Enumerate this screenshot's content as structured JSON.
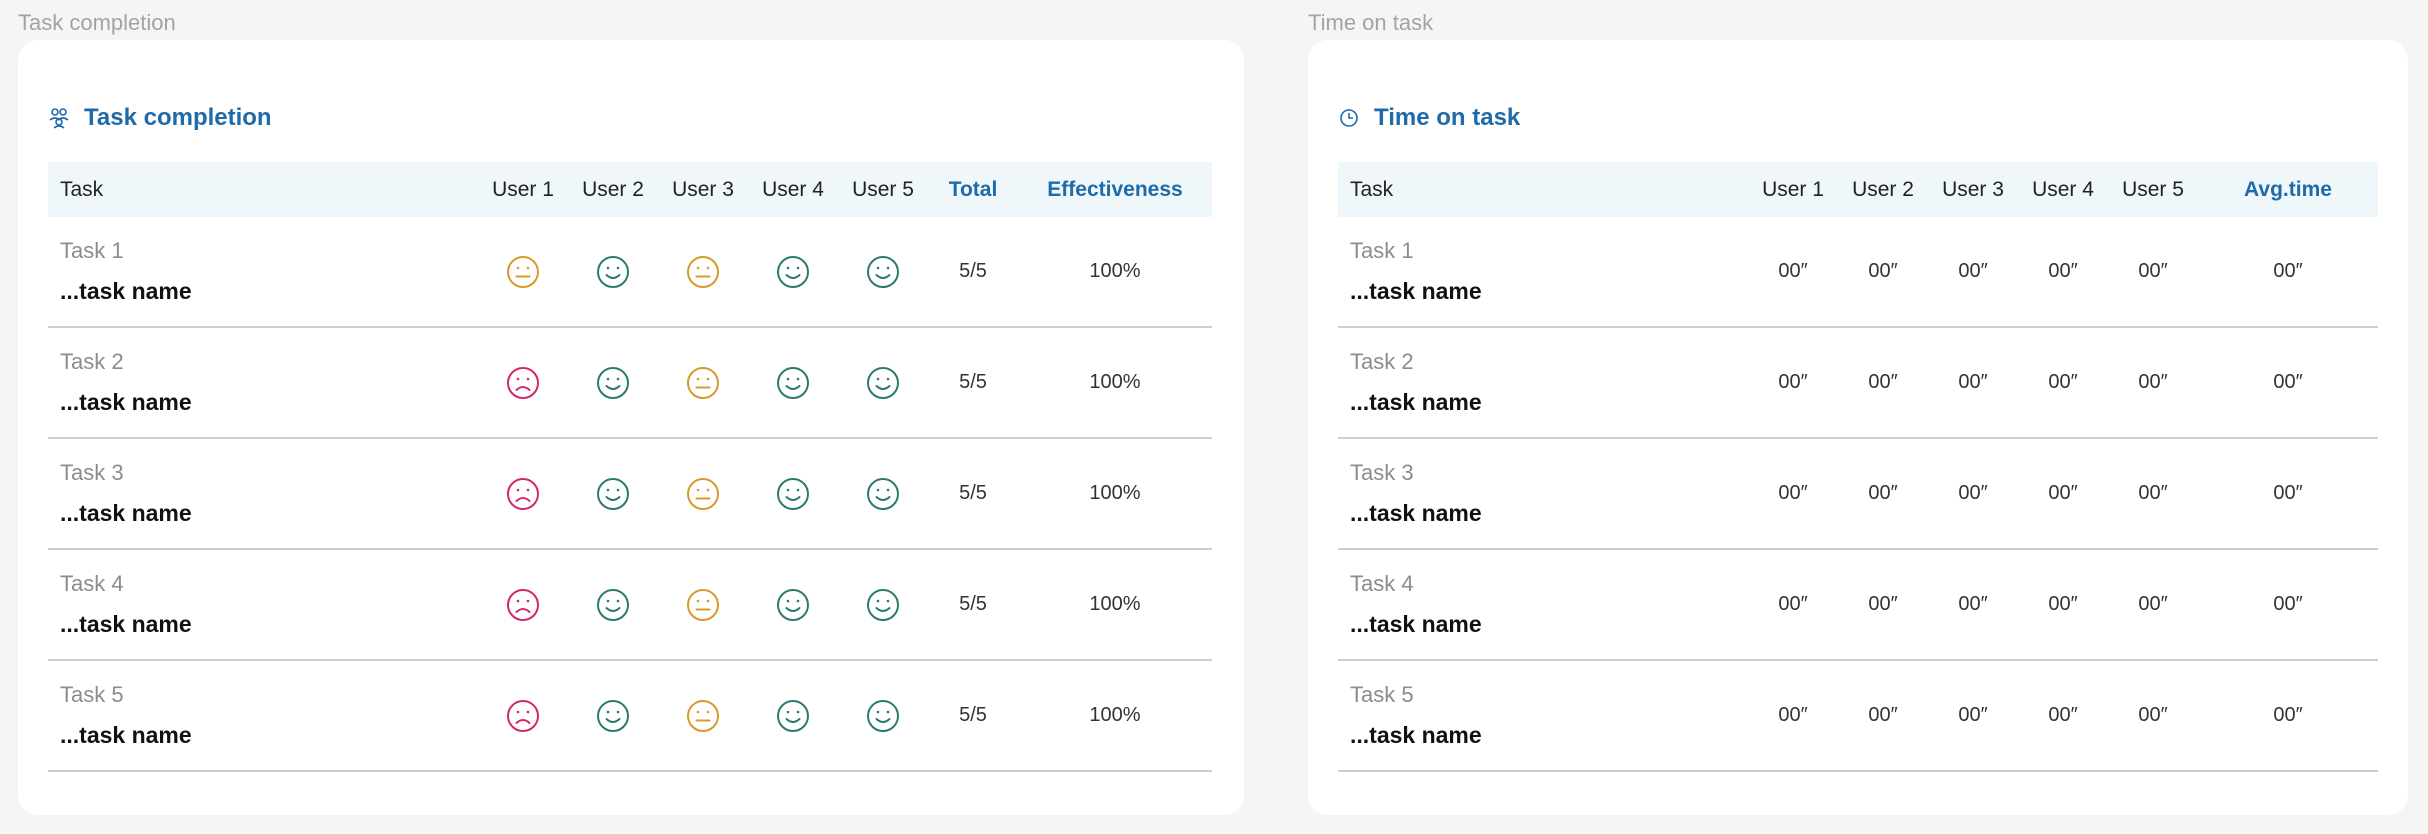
{
  "colors": {
    "happy": "#2a7a6f",
    "neutral": "#d79a2b",
    "sad": "#d4266b",
    "accent": "#1f6aa8"
  },
  "completion": {
    "frame_label": "Task completion",
    "title": "Task completion",
    "icon": "users-icon",
    "headers": {
      "task": "Task",
      "users": [
        "User 1",
        "User 2",
        "User 3",
        "User 4",
        "User 5"
      ],
      "total": "Total",
      "effectiveness": "Effectiveness"
    },
    "rows": [
      {
        "task": "Task 1",
        "name": "...task name",
        "faces": [
          "neutral",
          "happy",
          "neutral",
          "happy",
          "happy"
        ],
        "total": "5/5",
        "effectiveness": "100%"
      },
      {
        "task": "Task 2",
        "name": "...task name",
        "faces": [
          "sad",
          "happy",
          "neutral",
          "happy",
          "happy"
        ],
        "total": "5/5",
        "effectiveness": "100%"
      },
      {
        "task": "Task 3",
        "name": "...task name",
        "faces": [
          "sad",
          "happy",
          "neutral",
          "happy",
          "happy"
        ],
        "total": "5/5",
        "effectiveness": "100%"
      },
      {
        "task": "Task 4",
        "name": "...task name",
        "faces": [
          "sad",
          "happy",
          "neutral",
          "happy",
          "happy"
        ],
        "total": "5/5",
        "effectiveness": "100%"
      },
      {
        "task": "Task 5",
        "name": "...task name",
        "faces": [
          "sad",
          "happy",
          "neutral",
          "happy",
          "happy"
        ],
        "total": "5/5",
        "effectiveness": "100%"
      }
    ]
  },
  "time": {
    "frame_label": "Time on task",
    "title": "Time on task",
    "icon": "clock-icon",
    "headers": {
      "task": "Task",
      "users": [
        "User 1",
        "User 2",
        "User 3",
        "User 4",
        "User 5"
      ],
      "avg": "Avg.time"
    },
    "rows": [
      {
        "task": "Task 1",
        "name": "...task name",
        "times": [
          "00″",
          "00″",
          "00″",
          "00″",
          "00″"
        ],
        "avg": "00″"
      },
      {
        "task": "Task 2",
        "name": "...task name",
        "times": [
          "00″",
          "00″",
          "00″",
          "00″",
          "00″"
        ],
        "avg": "00″"
      },
      {
        "task": "Task 3",
        "name": "...task name",
        "times": [
          "00″",
          "00″",
          "00″",
          "00″",
          "00″"
        ],
        "avg": "00″"
      },
      {
        "task": "Task 4",
        "name": "...task name",
        "times": [
          "00″",
          "00″",
          "00″",
          "00″",
          "00″"
        ],
        "avg": "00″"
      },
      {
        "task": "Task 5",
        "name": "...task name",
        "times": [
          "00″",
          "00″",
          "00″",
          "00″",
          "00″"
        ],
        "avg": "00″"
      }
    ]
  }
}
